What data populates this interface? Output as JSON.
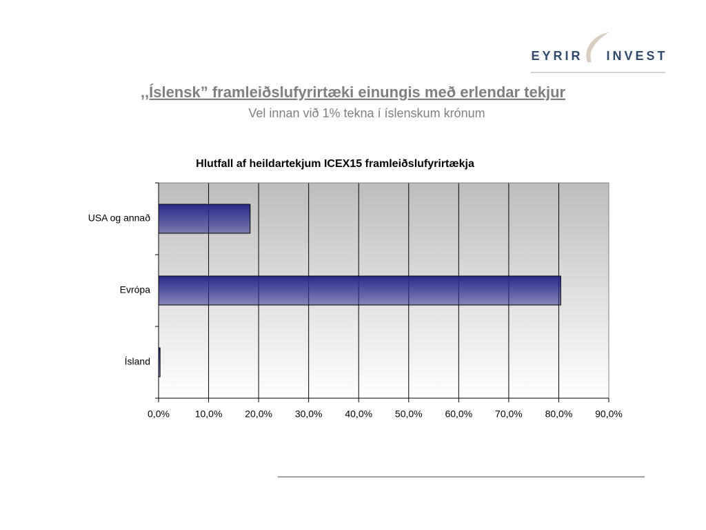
{
  "header": {
    "title": ",,Íslensk” framleiðslufyrirtæki einungis með erlendar tekjur",
    "subtitle": "Vel innan við 1% tekna í íslenskum krónum"
  },
  "logo": {
    "left": "EYRIR",
    "right": "INVEST"
  },
  "chart_data": {
    "type": "bar",
    "orientation": "horizontal",
    "title": "Hlutfall af heildartekjum ICEX15 framleiðslufyrirtækja",
    "categories": [
      "USA og annað",
      "Evrópa",
      "Ísland"
    ],
    "values": [
      18.3,
      80.4,
      0.3
    ],
    "color": "#2a2a8c",
    "xlim": [
      0,
      90
    ],
    "xticks": [
      {
        "value": 0,
        "label": "0,0%"
      },
      {
        "value": 10,
        "label": "10,0%"
      },
      {
        "value": 20,
        "label": "20,0%"
      },
      {
        "value": 30,
        "label": "30,0%"
      },
      {
        "value": 40,
        "label": "40,0%"
      },
      {
        "value": 50,
        "label": "50,0%"
      },
      {
        "value": 60,
        "label": "60,0%"
      },
      {
        "value": 70,
        "label": "70,0%"
      },
      {
        "value": 80,
        "label": "80,0%"
      },
      {
        "value": 90,
        "label": "90,0%"
      }
    ],
    "grid": true
  }
}
